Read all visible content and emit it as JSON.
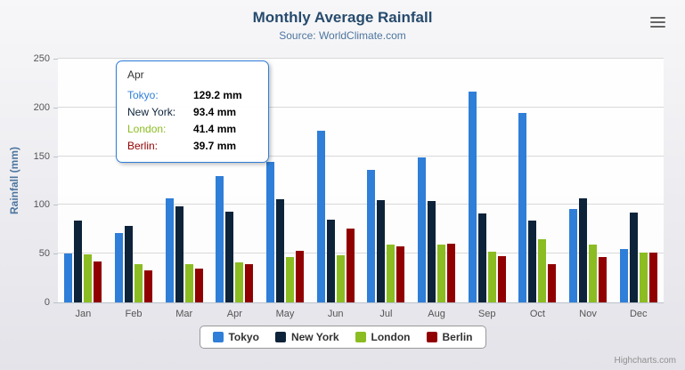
{
  "header": {
    "title": "Monthly Average Rainfall",
    "subtitle": "Source: WorldClimate.com"
  },
  "chart_data": {
    "type": "bar",
    "title": "Monthly Average Rainfall",
    "subtitle": "Source: WorldClimate.com",
    "categories": [
      "Jan",
      "Feb",
      "Mar",
      "Apr",
      "May",
      "Jun",
      "Jul",
      "Aug",
      "Sep",
      "Oct",
      "Nov",
      "Dec"
    ],
    "series": [
      {
        "name": "Tokyo",
        "color": "#2f7ed8",
        "values": [
          49.9,
          71.5,
          106.4,
          129.2,
          144.0,
          176.0,
          135.6,
          148.5,
          216.4,
          194.1,
          95.6,
          54.4
        ]
      },
      {
        "name": "New York",
        "color": "#0d233a",
        "values": [
          83.6,
          78.8,
          98.5,
          93.4,
          106.0,
          84.5,
          105.0,
          104.3,
          91.2,
          83.5,
          106.6,
          92.3
        ]
      },
      {
        "name": "London",
        "color": "#8bbc21",
        "values": [
          48.9,
          38.8,
          39.3,
          41.4,
          47.0,
          48.3,
          59.0,
          59.6,
          52.4,
          65.2,
          59.3,
          51.2
        ]
      },
      {
        "name": "Berlin",
        "color": "#910000",
        "values": [
          42.4,
          33.2,
          34.5,
          39.7,
          52.6,
          75.5,
          57.4,
          60.4,
          47.6,
          39.1,
          46.8,
          51.1
        ]
      }
    ],
    "xlabel": "",
    "ylabel": "Rainfall (mm)",
    "ylim": [
      0,
      250
    ],
    "ytick_interval": 50,
    "grid": true,
    "legend_position": "bottom"
  },
  "tooltip": {
    "category": "Apr",
    "border_color": "#2f7ed8",
    "rows": [
      {
        "name": "Tokyo:",
        "value": "129.2 mm",
        "color": "#2f7ed8"
      },
      {
        "name": "New York:",
        "value": "93.4 mm",
        "color": "#0d233a"
      },
      {
        "name": "London:",
        "value": "41.4 mm",
        "color": "#8bbc21"
      },
      {
        "name": "Berlin:",
        "value": "39.7 mm",
        "color": "#910000"
      }
    ]
  },
  "credits": "Highcharts.com",
  "icons": {
    "export_menu": "hamburger-icon"
  }
}
